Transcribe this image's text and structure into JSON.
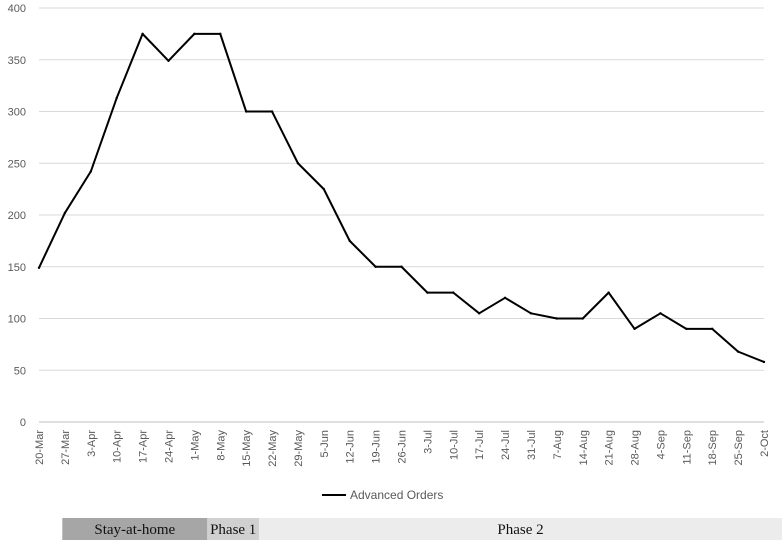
{
  "chart_data": {
    "type": "line",
    "title": "",
    "xlabel": "",
    "ylabel": "",
    "ylim": [
      0,
      400
    ],
    "yticks": [
      0,
      50,
      100,
      150,
      200,
      250,
      300,
      350,
      400
    ],
    "grid": "horizontal",
    "legend_position": "bottom",
    "categories": [
      "20-Mar",
      "27-Mar",
      "3-Apr",
      "10-Apr",
      "17-Apr",
      "24-Apr",
      "1-May",
      "8-May",
      "15-May",
      "22-May",
      "29-May",
      "5-Jun",
      "12-Jun",
      "19-Jun",
      "26-Jun",
      "3-Jul",
      "10-Jul",
      "17-Jul",
      "24-Jul",
      "31-Jul",
      "7-Aug",
      "14-Aug",
      "21-Aug",
      "28-Aug",
      "4-Sep",
      "11-Sep",
      "18-Sep",
      "25-Sep",
      "2-Oct"
    ],
    "series": [
      {
        "name": "Advanced Orders",
        "color": "#000000",
        "values": [
          149,
          202,
          242,
          313,
          375,
          349,
          375,
          375,
          300,
          300,
          250,
          225,
          175,
          150,
          150,
          125,
          125,
          105,
          120,
          105,
          100,
          100,
          125,
          90,
          105,
          90,
          90,
          68,
          58
        ]
      }
    ],
    "phases": [
      {
        "label": "Stay-at-home",
        "start": "27-Mar",
        "end": "1-May",
        "color": "#a6a6a6"
      },
      {
        "label": "Phase 1",
        "start": "8-May",
        "end": "15-May",
        "color": "#d0d0d0"
      },
      {
        "label": "Phase 2",
        "start": "22-May",
        "end": "2-Oct",
        "color": "#ececec"
      }
    ]
  }
}
